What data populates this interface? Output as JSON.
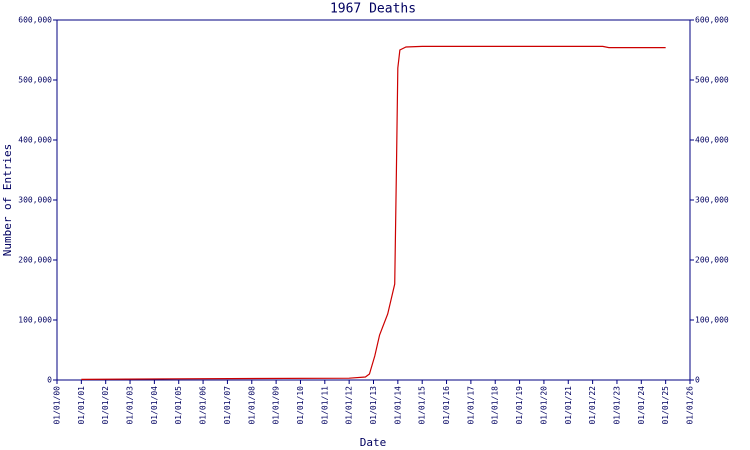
{
  "chart_data": {
    "type": "line",
    "title": "1967 Deaths",
    "x_label": "Date",
    "y_label": "Number of Entries",
    "x": [
      "01/01/01",
      "01/01/05",
      "01/01/12",
      "09/01/12",
      "11/01/12",
      "01/20/13",
      "04/01/13",
      "08/01/13",
      "11/15/13",
      "12/10/13",
      "12/31/13",
      "02/01/14",
      "05/01/14",
      "01/01/15",
      "06/01/22",
      "09/01/22",
      "01/01/25"
    ],
    "series": [
      {
        "name": "1967 Deaths",
        "color": "#cc0000",
        "values": [
          1000,
          2000,
          3000,
          5000,
          10000,
          40000,
          75000,
          110000,
          160000,
          350000,
          520000,
          550000,
          555000,
          556000,
          556000,
          554000,
          554000
        ]
      }
    ],
    "xlim": [
      "01/01/00",
      "01/01/26"
    ],
    "xticks": [
      "01/01/00",
      "01/01/01",
      "01/01/02",
      "01/01/03",
      "01/01/04",
      "01/01/05",
      "01/01/06",
      "01/01/07",
      "01/01/08",
      "01/01/09",
      "01/01/10",
      "01/01/11",
      "01/01/12",
      "01/01/13",
      "01/01/14",
      "01/01/15",
      "01/01/16",
      "01/01/17",
      "01/01/18",
      "01/01/19",
      "01/01/20",
      "01/01/21",
      "01/01/22",
      "01/01/23",
      "01/01/24",
      "01/01/25",
      "01/01/26"
    ],
    "ylim": [
      0,
      600000
    ],
    "yticks": [
      0,
      {
        "value": 100000,
        "label": "100,000"
      },
      {
        "value": 200000,
        "label": "200,000"
      },
      {
        "value": 300000,
        "label": "300,000"
      },
      {
        "value": 400000,
        "label": "400,000"
      },
      {
        "value": 500000,
        "label": "500,000"
      },
      {
        "value": 600000,
        "label": "600,000"
      }
    ],
    "axis_color": "#000080"
  }
}
